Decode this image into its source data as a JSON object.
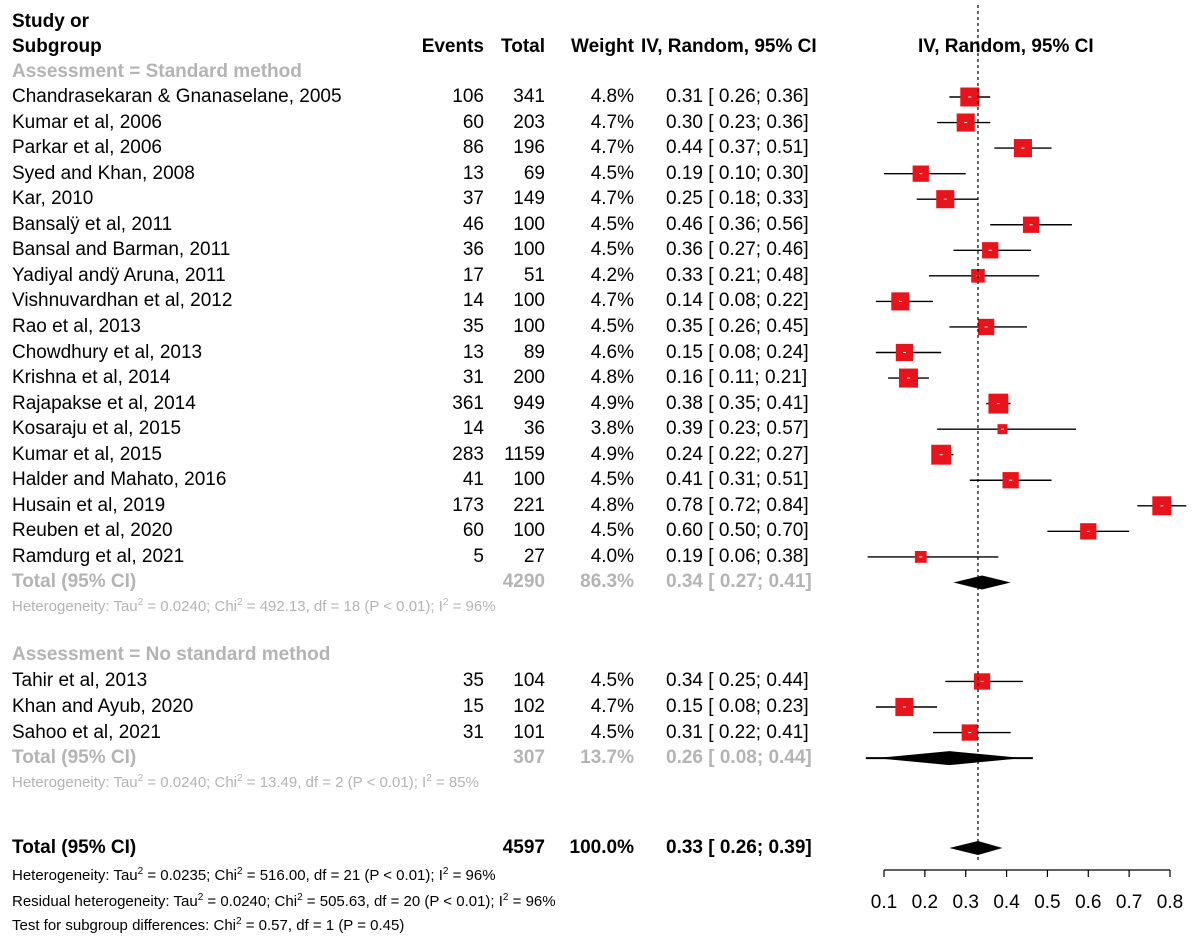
{
  "header": {
    "study_line1": "Study or",
    "study_line2": "Subgroup",
    "events": "Events",
    "total": "Total",
    "weight": "Weight",
    "ci": "IV, Random, 95% CI",
    "plot_title": "IV, Random, 95% CI"
  },
  "groups": [
    {
      "label": "Assessment = Standard method",
      "studies": [
        {
          "name": "Chandrasekaran & Gnanaselane, 2005",
          "events": "106",
          "total": "341",
          "weight": "4.8%",
          "ci": "0.31 [ 0.26; 0.36]",
          "est": 0.31,
          "lo": 0.26,
          "hi": 0.36,
          "w": 4.8
        },
        {
          "name": "Kumar et al, 2006",
          "events": "60",
          "total": "203",
          "weight": "4.7%",
          "ci": "0.30 [ 0.23; 0.36]",
          "est": 0.3,
          "lo": 0.23,
          "hi": 0.36,
          "w": 4.7
        },
        {
          "name": "Parkar et al, 2006",
          "events": "86",
          "total": "196",
          "weight": "4.7%",
          "ci": "0.44 [ 0.37; 0.51]",
          "est": 0.44,
          "lo": 0.37,
          "hi": 0.51,
          "w": 4.7
        },
        {
          "name": "Syed and Khan, 2008",
          "events": "13",
          "total": "69",
          "weight": "4.5%",
          "ci": "0.19 [ 0.10; 0.30]",
          "est": 0.19,
          "lo": 0.1,
          "hi": 0.3,
          "w": 4.5
        },
        {
          "name": "Kar, 2010",
          "events": "37",
          "total": "149",
          "weight": "4.7%",
          "ci": "0.25 [ 0.18; 0.33]",
          "est": 0.25,
          "lo": 0.18,
          "hi": 0.33,
          "w": 4.7
        },
        {
          "name": "Bansalÿ et al, 2011",
          "events": "46",
          "total": "100",
          "weight": "4.5%",
          "ci": "0.46 [ 0.36; 0.56]",
          "est": 0.46,
          "lo": 0.36,
          "hi": 0.56,
          "w": 4.5
        },
        {
          "name": "Bansal and Barman, 2011",
          "events": "36",
          "total": "100",
          "weight": "4.5%",
          "ci": "0.36 [ 0.27; 0.46]",
          "est": 0.36,
          "lo": 0.27,
          "hi": 0.46,
          "w": 4.5
        },
        {
          "name": "Yadiyal andÿ Aruna, 2011",
          "events": "17",
          "total": "51",
          "weight": "4.2%",
          "ci": "0.33 [ 0.21; 0.48]",
          "est": 0.33,
          "lo": 0.21,
          "hi": 0.48,
          "w": 4.2
        },
        {
          "name": "Vishnuvardhan et al, 2012",
          "events": "14",
          "total": "100",
          "weight": "4.7%",
          "ci": "0.14 [ 0.08; 0.22]",
          "est": 0.14,
          "lo": 0.08,
          "hi": 0.22,
          "w": 4.7
        },
        {
          "name": "Rao et al, 2013",
          "events": "35",
          "total": "100",
          "weight": "4.5%",
          "ci": "0.35 [ 0.26; 0.45]",
          "est": 0.35,
          "lo": 0.26,
          "hi": 0.45,
          "w": 4.5
        },
        {
          "name": "Chowdhury et al, 2013",
          "events": "13",
          "total": "89",
          "weight": "4.6%",
          "ci": "0.15 [ 0.08; 0.24]",
          "est": 0.15,
          "lo": 0.08,
          "hi": 0.24,
          "w": 4.6
        },
        {
          "name": "Krishna et al, 2014",
          "events": "31",
          "total": "200",
          "weight": "4.8%",
          "ci": "0.16 [ 0.11; 0.21]",
          "est": 0.16,
          "lo": 0.11,
          "hi": 0.21,
          "w": 4.8
        },
        {
          "name": "Rajapakse et al, 2014",
          "events": "361",
          "total": "949",
          "weight": "4.9%",
          "ci": "0.38 [ 0.35; 0.41]",
          "est": 0.38,
          "lo": 0.35,
          "hi": 0.41,
          "w": 4.9
        },
        {
          "name": "Kosaraju et al, 2015",
          "events": "14",
          "total": "36",
          "weight": "3.8%",
          "ci": "0.39 [ 0.23; 0.57]",
          "est": 0.39,
          "lo": 0.23,
          "hi": 0.57,
          "w": 3.8
        },
        {
          "name": "Kumar et al, 2015",
          "events": "283",
          "total": "1159",
          "weight": "4.9%",
          "ci": "0.24 [ 0.22; 0.27]",
          "est": 0.24,
          "lo": 0.22,
          "hi": 0.27,
          "w": 4.9
        },
        {
          "name": "Halder and Mahato, 2016",
          "events": "41",
          "total": "100",
          "weight": "4.5%",
          "ci": "0.41 [ 0.31; 0.51]",
          "est": 0.41,
          "lo": 0.31,
          "hi": 0.51,
          "w": 4.5
        },
        {
          "name": "Husain et al, 2019",
          "events": "173",
          "total": "221",
          "weight": "4.8%",
          "ci": "0.78 [ 0.72; 0.84]",
          "est": 0.78,
          "lo": 0.72,
          "hi": 0.84,
          "w": 4.8
        },
        {
          "name": "Reuben et al, 2020",
          "events": "60",
          "total": "100",
          "weight": "4.5%",
          "ci": "0.60 [ 0.50; 0.70]",
          "est": 0.6,
          "lo": 0.5,
          "hi": 0.7,
          "w": 4.5
        },
        {
          "name": "Ramdurg et al, 2021",
          "events": "5",
          "total": "27",
          "weight": "4.0%",
          "ci": "0.19 [ 0.06; 0.38]",
          "est": 0.19,
          "lo": 0.06,
          "hi": 0.38,
          "w": 4.0
        }
      ],
      "total": {
        "label": "Total (95% CI)",
        "total": "4290",
        "weight": "86.3%",
        "ci": "0.34 [ 0.27; 0.41]",
        "est": 0.34,
        "lo": 0.27,
        "hi": 0.41
      },
      "heterogeneity": {
        "a": "Heterogeneity: Tau",
        "b": " = 0.0240; Chi",
        "c": " = 492.13, df = 18 (P < 0.01); I",
        "d": " = 96%"
      }
    },
    {
      "label": "Assessment = No standard method",
      "studies": [
        {
          "name": "Tahir et al, 2013",
          "events": "35",
          "total": "104",
          "weight": "4.5%",
          "ci": "0.34 [ 0.25; 0.44]",
          "est": 0.34,
          "lo": 0.25,
          "hi": 0.44,
          "w": 4.5
        },
        {
          "name": "Khan and Ayub, 2020",
          "events": "15",
          "total": "102",
          "weight": "4.7%",
          "ci": "0.15 [ 0.08; 0.23]",
          "est": 0.15,
          "lo": 0.08,
          "hi": 0.23,
          "w": 4.7
        },
        {
          "name": "Sahoo et al, 2021",
          "events": "31",
          "total": "101",
          "weight": "4.5%",
          "ci": "0.31 [ 0.22; 0.41]",
          "est": 0.31,
          "lo": 0.22,
          "hi": 0.41,
          "w": 4.5
        }
      ],
      "total": {
        "label": "Total (95% CI)",
        "total": "307",
        "weight": "13.7%",
        "ci": "0.26 [ 0.08; 0.44]",
        "est": 0.26,
        "lo": 0.08,
        "hi": 0.44
      },
      "heterogeneity": {
        "a": "Heterogeneity: Tau",
        "b": " = 0.0240; Chi",
        "c": " = 13.49, df = 2 (P < 0.01); I",
        "d": " = 85%"
      }
    }
  ],
  "overall": {
    "label": "Total (95% CI)",
    "total": "4597",
    "weight": "100.0%",
    "ci": "0.33 [ 0.26; 0.39]",
    "est": 0.33,
    "lo": 0.26,
    "hi": 0.39,
    "het1": {
      "a": "Heterogeneity: Tau",
      "b": " = 0.0235; Chi",
      "c": " = 516.00, df = 21 (P < 0.01); I",
      "d": " = 96%"
    },
    "het2": {
      "a": "Residual heterogeneity: Tau",
      "b": " = 0.0240; Chi",
      "c": " = 505.63, df = 20 (P < 0.01); I",
      "d": " = 96%"
    },
    "het3": {
      "a": "Test for subgroup differences: Chi",
      "b": " = 0.57, df = 1 (P = 0.45)"
    }
  },
  "sup2": "2",
  "chart_data": {
    "type": "forest",
    "title": "IV, Random, 95% CI",
    "xlim": [
      0.1,
      0.8
    ],
    "xticks": [
      "0.1",
      "0.2",
      "0.3",
      "0.4",
      "0.5",
      "0.6",
      "0.7",
      "0.8"
    ],
    "reference_line": 0.33,
    "colors": {
      "box": "#e8141b",
      "line": "#000000",
      "diamond": "#000000"
    }
  }
}
